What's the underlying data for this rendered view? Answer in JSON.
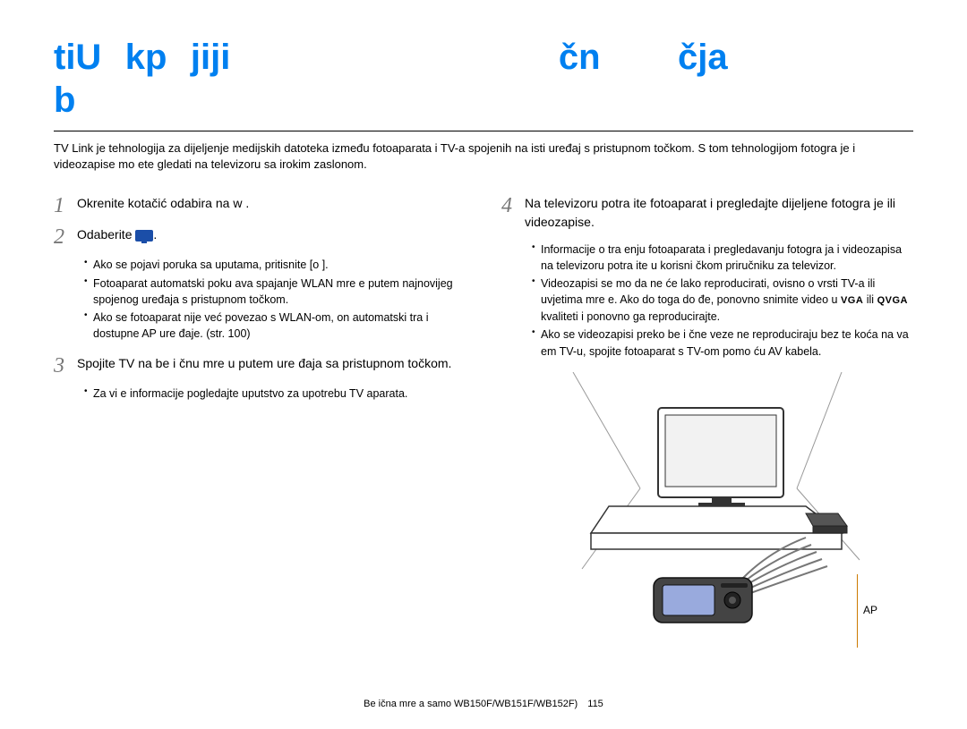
{
  "title_fragments": [
    "tiU",
    "kp",
    "jiji",
    "čn",
    "čja",
    "b"
  ],
  "intro": "TV Link je tehnologija za dijeljenje medijskih datoteka između fotoaparata i TV-a spojenih na isti uređaj s pristupnom točkom. S tom tehnologijom fotogra je i videozapise mo ete gledati na televizoru sa  irokim zaslonom.",
  "left": {
    "s1": {
      "num": "1",
      "text": "Okrenite kotačić odabira na w      ."
    },
    "s2": {
      "num": "2",
      "text": "Odaberite ",
      "bullets": [
        "Ako se pojavi poruka sa uputama, pritisnite [o     ].",
        "Fotoaparat automatski poku ava spajanje WLAN mre e putem najnovijeg spojenog uređaja s pristupnom točkom.",
        "Ako se fotoaparat nije već povezao s WLAN-om, on automatski tra i dostupne AP ure đaje. (str. 100)"
      ]
    },
    "s3": {
      "num": "3",
      "text": "Spojite TV na be i čnu mre u putem ure đaja sa pristupnom točkom.",
      "bullets": [
        "Za vi e informacije pogledajte uputstvo za upotrebu TV aparata."
      ]
    }
  },
  "right": {
    "s4": {
      "num": "4",
      "text": "Na televizoru potra ite fotoaparat i pregledajte dijeljene fotogra je ili videozapise.",
      "bullets": [
        "Informacije o tra enju fotoaparata i pregledavanju fotogra ja i videozapisa na televizoru potra ite u korisni čkom priručniku za televizor.",
        "Videozapisi se mo da ne će lako reproducirati, ovisno o vrsti TV-a ili uvjetima mre e. Ako do toga do đe, ponovno snimite video u __VGA__ ili __QVGA__ kvaliteti i ponovno ga reproducirajte.",
        "Ako se videozapisi preko be i čne veze ne reproduciraju bez te koća na va em TV-u, spojite fotoaparat s TV-om pomo ću AV kabela."
      ]
    },
    "ap_label": "AP"
  },
  "footer": {
    "text": "Be ična mre a  samo WB150F/WB151F/WB152F)",
    "page": "115"
  },
  "colors": {
    "title": "#0080f0",
    "ap_line": "#cc7a00",
    "step_num": "#777777"
  }
}
